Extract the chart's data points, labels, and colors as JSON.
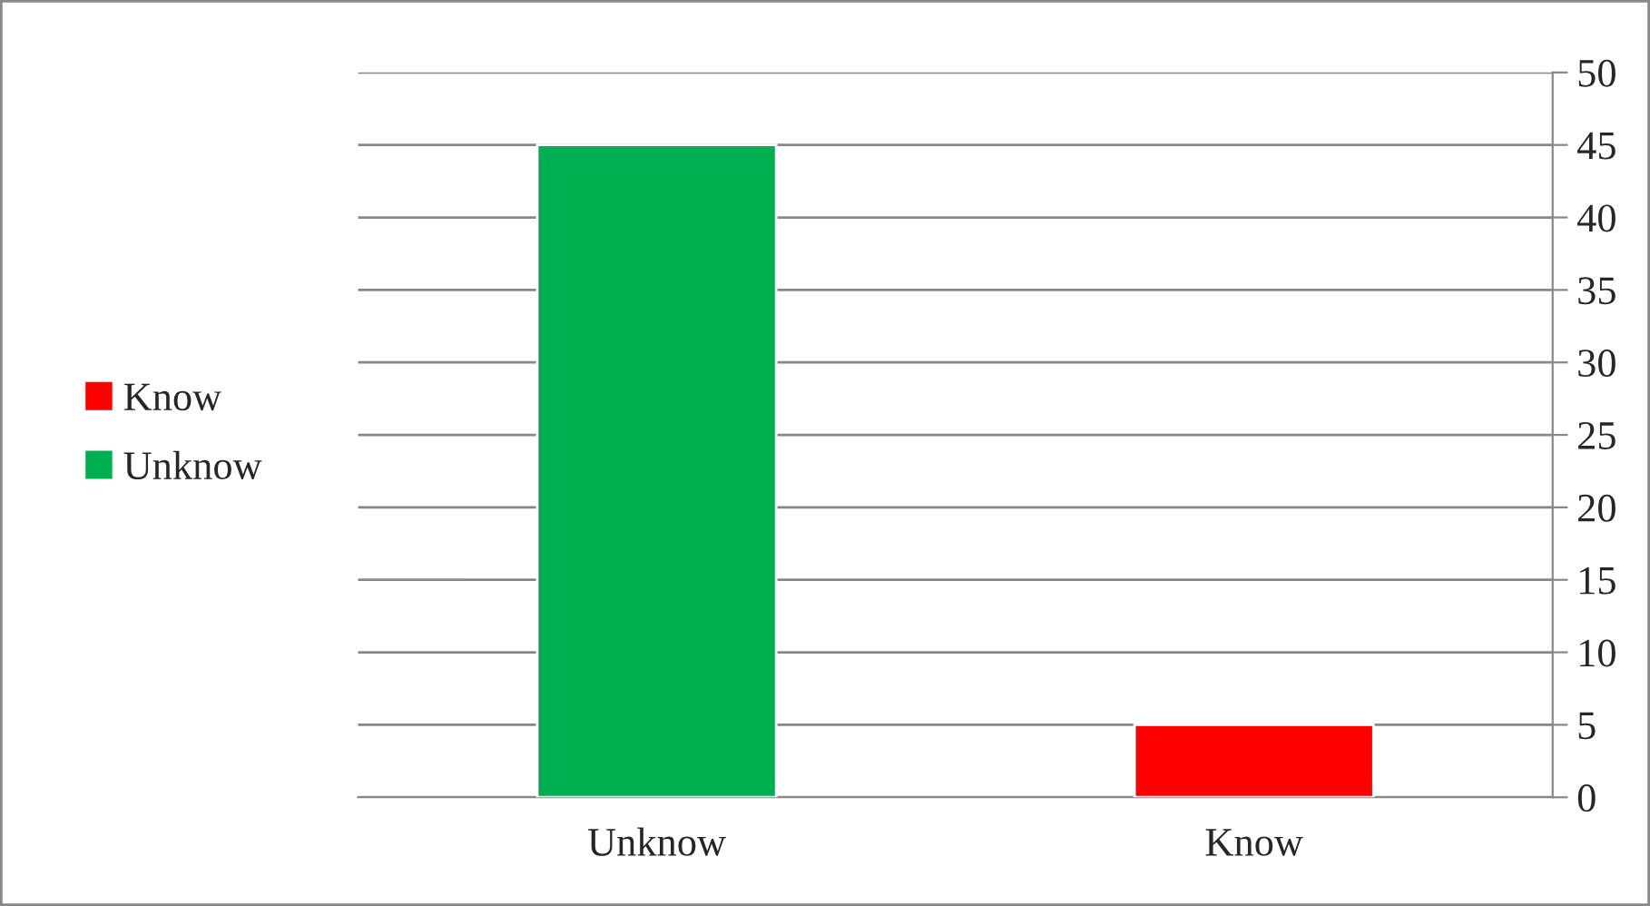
{
  "chart_data": {
    "type": "bar",
    "categories": [
      "Unknow",
      "Know"
    ],
    "series": [
      {
        "name": "Know",
        "color": "#ff0000",
        "values": [
          null,
          5
        ]
      },
      {
        "name": "Unknow",
        "color": "#00b050",
        "values": [
          45,
          null
        ]
      }
    ],
    "ylim": [
      0,
      50
    ],
    "yticks": [
      0,
      5,
      10,
      15,
      20,
      25,
      30,
      35,
      40,
      45,
      50
    ],
    "grid": "y",
    "legend": "left"
  }
}
